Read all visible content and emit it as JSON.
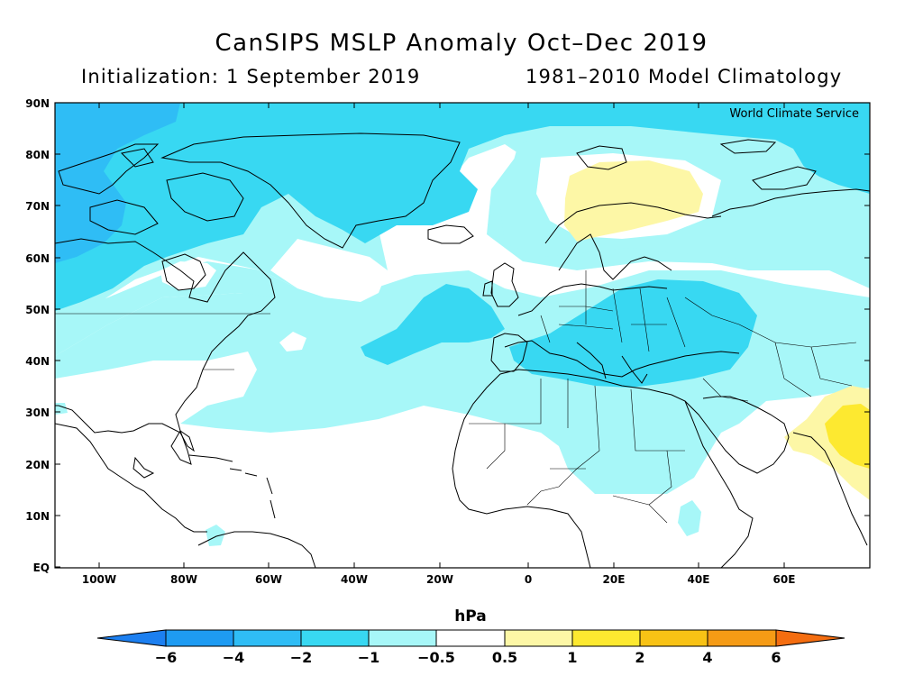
{
  "title": "CanSIPS MSLP Anomaly Oct–Dec 2019",
  "subtitle_left": "Initialization: 1 September 2019",
  "subtitle_right": "1981–2010 Model Climatology",
  "credit": "World Climate Service",
  "colorbar_title": "hPa",
  "lat_labels": [
    "90N",
    "80N",
    "70N",
    "60N",
    "50N",
    "40N",
    "30N",
    "20N",
    "10N",
    "EQ"
  ],
  "lon_labels": [
    "100W",
    "80W",
    "60W",
    "40W",
    "20W",
    "0",
    "20E",
    "40E",
    "60E"
  ],
  "colorbar": {
    "labels": [
      "−6",
      "−4",
      "−2",
      "−1",
      "−0.5",
      "0.5",
      "1",
      "2",
      "4",
      "6"
    ],
    "colors": [
      "#1c7ff0",
      "#1e9bf2",
      "#2fbdf5",
      "#38d8f2",
      "#a7f7f8",
      "#ffffff",
      "#fdf7a6",
      "#fde930",
      "#f8c215",
      "#f59b15",
      "#f46d10"
    ]
  },
  "colors": {
    "neg_1_2": "#38d8f2",
    "neg_05_1": "#a7f7f8",
    "neg_2_4": "#2fbdf5",
    "pos_05_1": "#fdf7a6",
    "pos_1_2": "#fde930",
    "neutral": "#ffffff"
  }
}
